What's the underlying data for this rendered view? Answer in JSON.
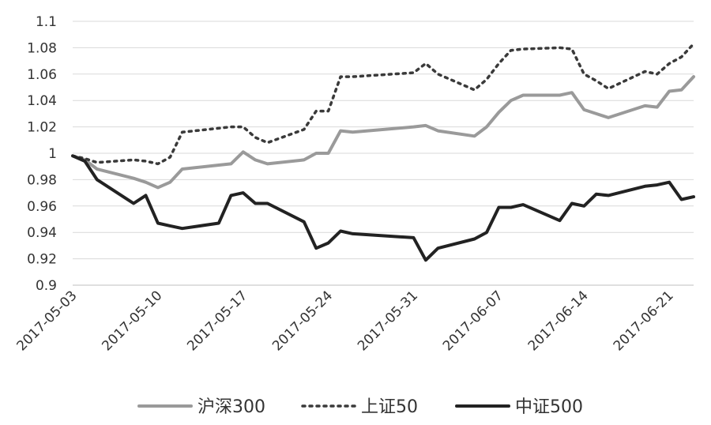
{
  "chart_data": {
    "type": "line",
    "x": [
      "2017-05-03",
      "2017-05-04",
      "2017-05-05",
      "2017-05-08",
      "2017-05-09",
      "2017-05-10",
      "2017-05-11",
      "2017-05-12",
      "2017-05-15",
      "2017-05-16",
      "2017-05-17",
      "2017-05-18",
      "2017-05-19",
      "2017-05-22",
      "2017-05-23",
      "2017-05-24",
      "2017-05-25",
      "2017-05-26",
      "2017-05-31",
      "2017-06-01",
      "2017-06-02",
      "2017-06-05",
      "2017-06-06",
      "2017-06-07",
      "2017-06-08",
      "2017-06-09",
      "2017-06-12",
      "2017-06-13",
      "2017-06-14",
      "2017-06-15",
      "2017-06-16",
      "2017-06-19",
      "2017-06-20",
      "2017-06-21",
      "2017-06-22",
      "2017-06-23"
    ],
    "x_tick_labels": [
      "2017-05-03",
      "2017-05-10",
      "2017-05-17",
      "2017-05-24",
      "2017-05-31",
      "2017-06-07",
      "2017-06-14",
      "2017-06-21"
    ],
    "series": [
      {
        "name": "沪深300",
        "style": "solid",
        "color": "#9a9a9a",
        "values": [
          0.998,
          0.995,
          0.988,
          0.981,
          0.978,
          0.974,
          0.978,
          0.988,
          0.991,
          0.992,
          1.001,
          0.995,
          0.992,
          0.995,
          1.0,
          1.0,
          1.017,
          1.016,
          1.02,
          1.021,
          1.017,
          1.013,
          1.02,
          1.031,
          1.04,
          1.044,
          1.044,
          1.046,
          1.033,
          1.03,
          1.027,
          1.036,
          1.035,
          1.047,
          1.048,
          1.058
        ]
      },
      {
        "name": "上证50",
        "style": "dotted",
        "color": "#3a3a3a",
        "values": [
          0.998,
          0.996,
          0.993,
          0.995,
          0.994,
          0.992,
          0.997,
          1.016,
          1.019,
          1.02,
          1.02,
          1.012,
          1.008,
          1.018,
          1.032,
          1.032,
          1.058,
          1.058,
          1.061,
          1.068,
          1.06,
          1.048,
          1.056,
          1.068,
          1.078,
          1.079,
          1.08,
          1.079,
          1.06,
          1.055,
          1.049,
          1.062,
          1.06,
          1.068,
          1.073,
          1.083
        ]
      },
      {
        "name": "中证500",
        "style": "solid",
        "color": "#222222",
        "values": [
          0.998,
          0.994,
          0.98,
          0.962,
          0.968,
          0.947,
          0.945,
          0.943,
          0.947,
          0.968,
          0.97,
          0.962,
          0.962,
          0.948,
          0.928,
          0.932,
          0.941,
          0.939,
          0.936,
          0.919,
          0.928,
          0.935,
          0.94,
          0.959,
          0.959,
          0.961,
          0.949,
          0.962,
          0.96,
          0.969,
          0.968,
          0.975,
          0.976,
          0.978,
          0.965,
          0.967
        ]
      }
    ],
    "title": "",
    "xlabel": "",
    "ylabel": "",
    "ylim": [
      0.9,
      1.1
    ],
    "yticks": [
      "0.9",
      "0.92",
      "0.94",
      "0.96",
      "0.98",
      "1",
      "1.02",
      "1.04",
      "1.06",
      "1.08",
      "1.1"
    ],
    "grid": true,
    "legend_position": "bottom"
  }
}
